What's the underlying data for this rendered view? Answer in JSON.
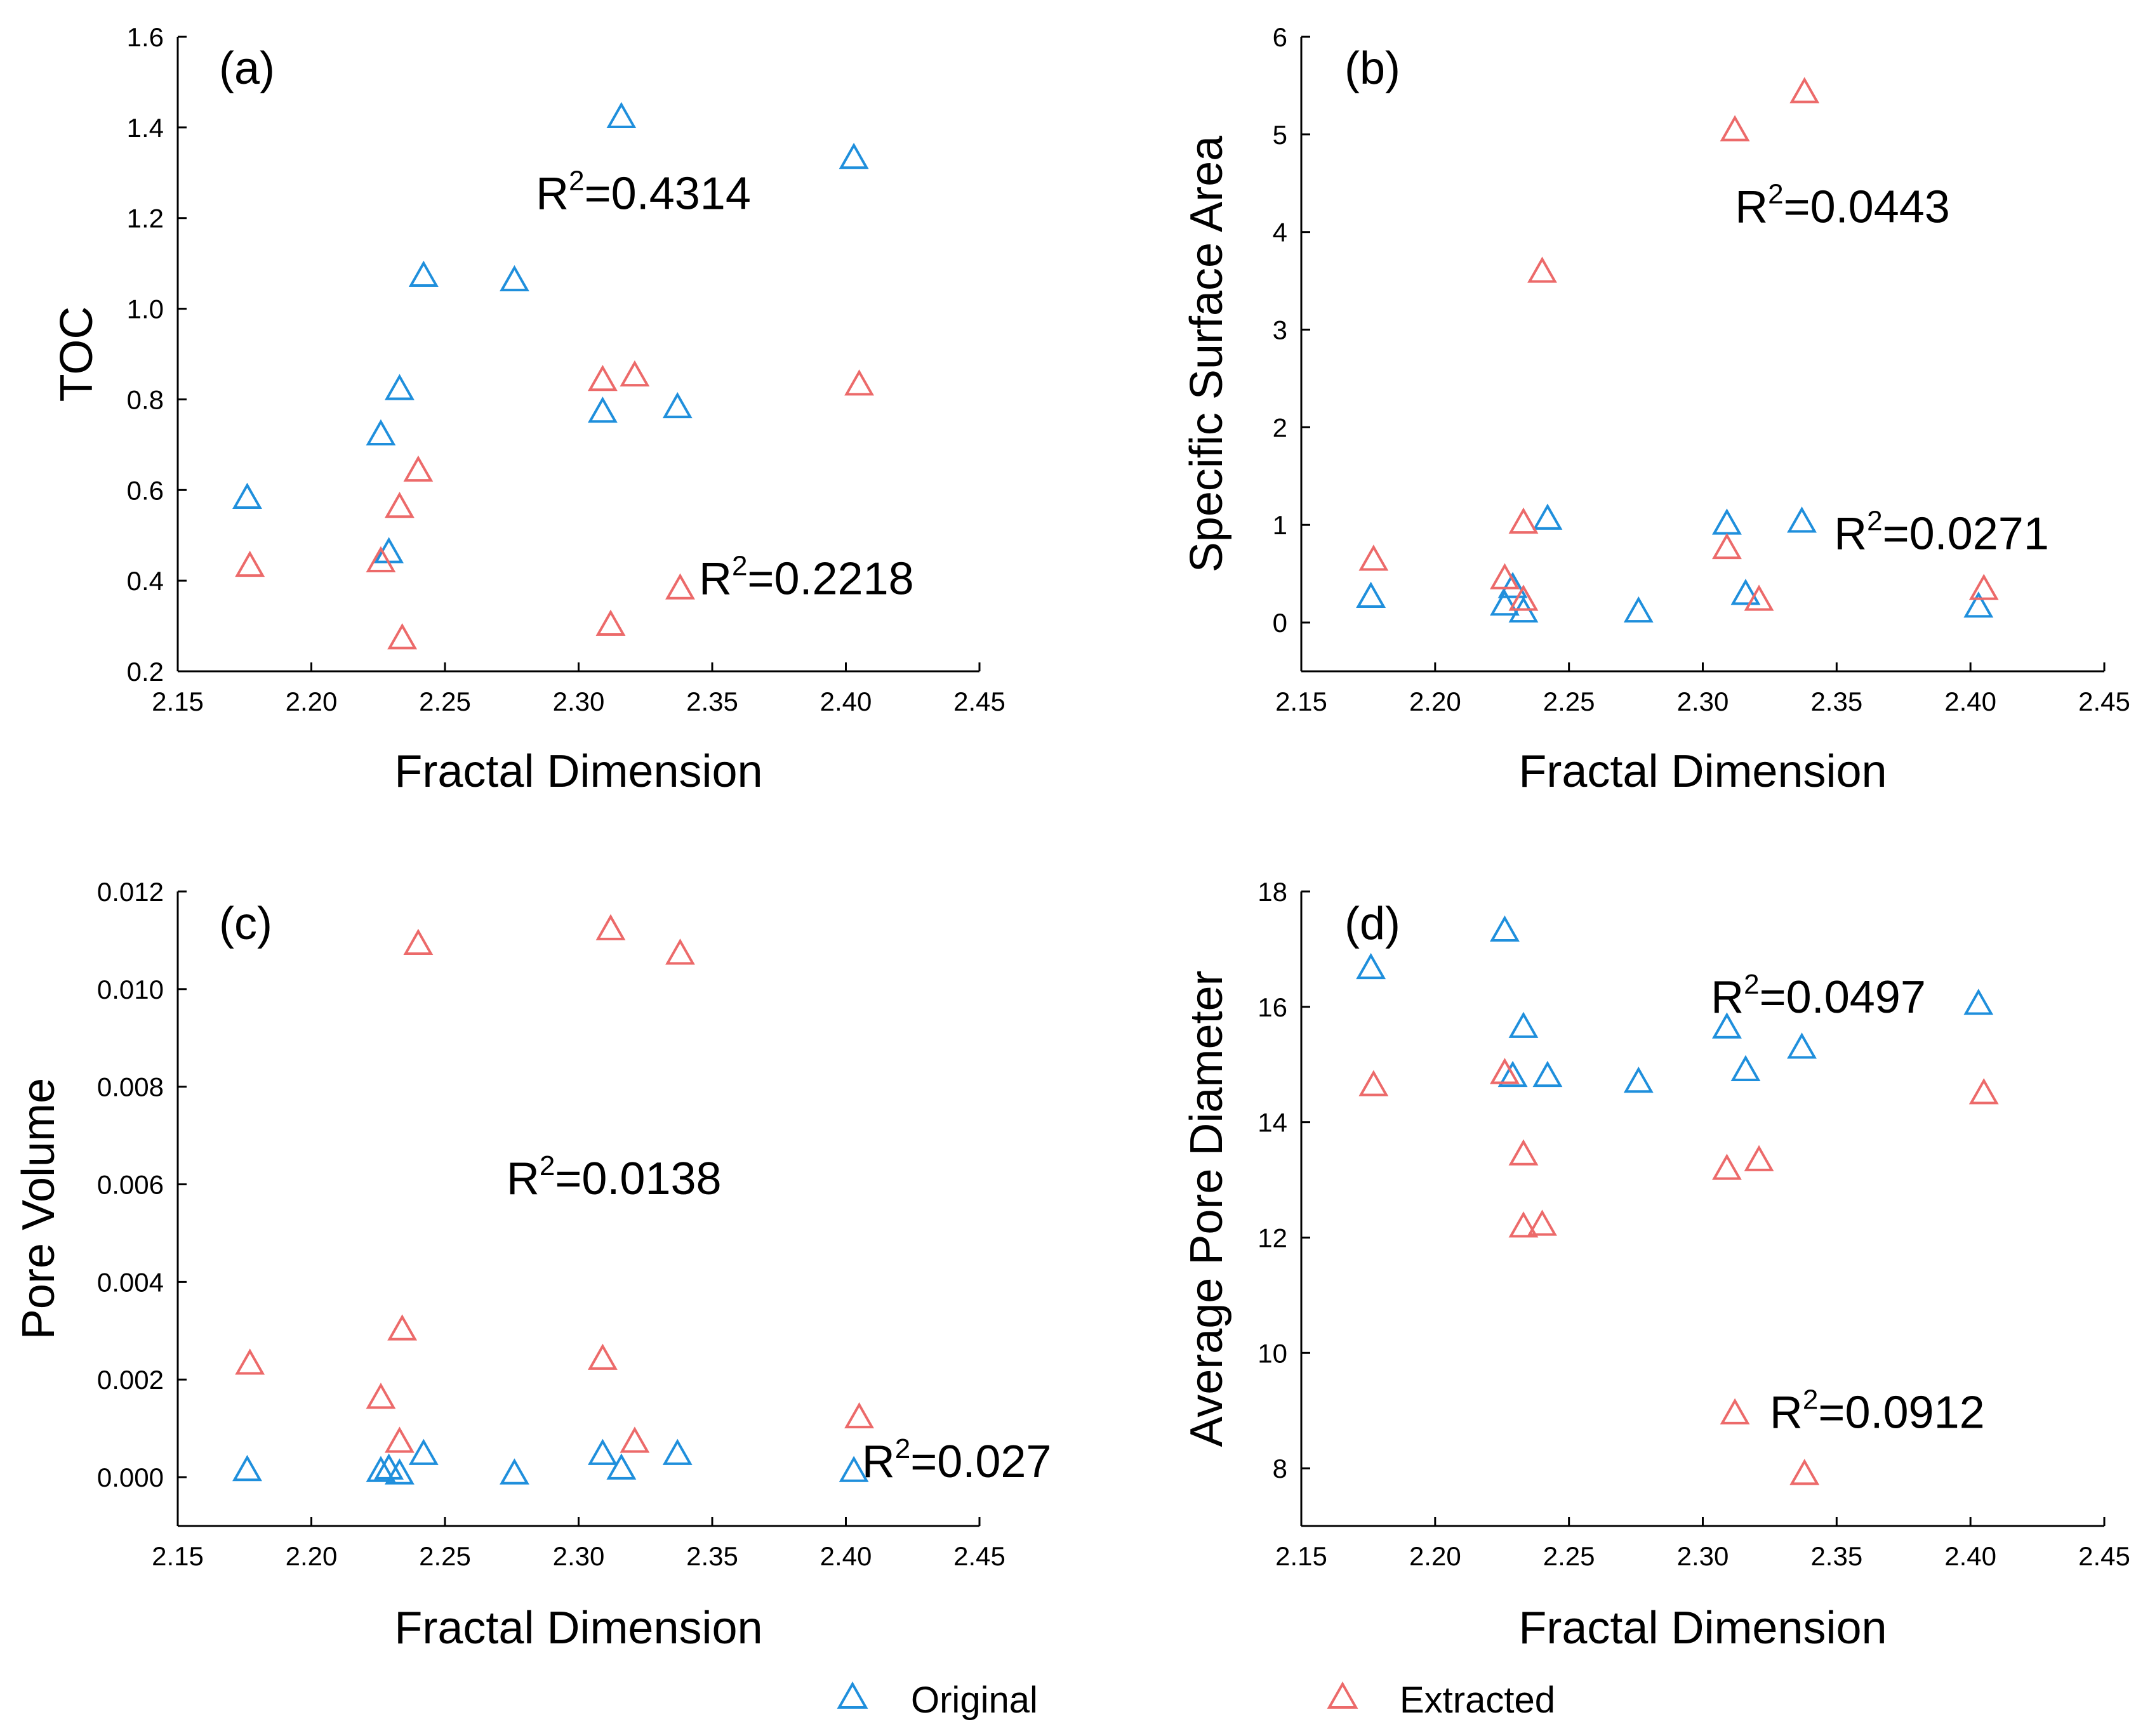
{
  "colors": {
    "original": "#1f8fdc",
    "extracted": "#ec6a6a"
  },
  "legend": {
    "items": [
      {
        "label": "Original",
        "series": "original"
      },
      {
        "label": "Extracted",
        "series": "extracted"
      }
    ]
  },
  "chart_data": [
    {
      "type": "scatter",
      "id": "a",
      "label": "(a)",
      "xlabel": "Fractal Dimension",
      "ylabel": "TOC",
      "xlim": [
        2.15,
        2.45
      ],
      "ylim": [
        0.2,
        1.6
      ],
      "xticks": [
        "2.15",
        "2.20",
        "2.25",
        "2.30",
        "2.35",
        "2.40",
        "2.45"
      ],
      "yticks": [
        "0.2",
        "0.4",
        "0.6",
        "0.8",
        "1.0",
        "1.2",
        "1.4",
        "1.6"
      ],
      "series": [
        {
          "name": "Original",
          "key": "original",
          "points": [
            [
              2.176,
              0.58
            ],
            [
              2.226,
              0.72
            ],
            [
              2.229,
              0.46
            ],
            [
              2.233,
              0.82
            ],
            [
              2.242,
              1.07
            ],
            [
              2.276,
              1.06
            ],
            [
              2.309,
              0.77
            ],
            [
              2.316,
              1.42
            ],
            [
              2.337,
              0.78
            ],
            [
              2.403,
              1.33
            ]
          ]
        },
        {
          "name": "Extracted",
          "key": "extracted",
          "points": [
            [
              2.177,
              0.43
            ],
            [
              2.226,
              0.44
            ],
            [
              2.233,
              0.56
            ],
            [
              2.234,
              0.27
            ],
            [
              2.24,
              0.64
            ],
            [
              2.309,
              0.84
            ],
            [
              2.312,
              0.3
            ],
            [
              2.321,
              0.85
            ],
            [
              2.338,
              0.38
            ],
            [
              2.405,
              0.83
            ]
          ]
        }
      ],
      "annotations": [
        {
          "text": "R",
          "sup": "2",
          "rest": "=0.4314",
          "x": 2.284,
          "y": 1.22
        },
        {
          "text": "R",
          "sup": "2",
          "rest": "=0.2218",
          "x": 2.345,
          "y": 0.37
        }
      ]
    },
    {
      "type": "scatter",
      "id": "b",
      "label": "(b)",
      "xlabel": "Fractal Dimension",
      "ylabel": "Specific Surface Area",
      "xlim": [
        2.15,
        2.45
      ],
      "ylim": [
        -0.5,
        6
      ],
      "xticks": [
        "2.15",
        "2.20",
        "2.25",
        "2.30",
        "2.35",
        "2.40",
        "2.45"
      ],
      "yticks": [
        "0",
        "1",
        "2",
        "3",
        "4",
        "5",
        "6"
      ],
      "series": [
        {
          "name": "Original",
          "key": "original",
          "points": [
            [
              2.176,
              0.25
            ],
            [
              2.226,
              0.17
            ],
            [
              2.229,
              0.35
            ],
            [
              2.233,
              0.1
            ],
            [
              2.242,
              1.05
            ],
            [
              2.276,
              0.1
            ],
            [
              2.309,
              1.0
            ],
            [
              2.316,
              0.28
            ],
            [
              2.337,
              1.02
            ],
            [
              2.403,
              0.15
            ]
          ]
        },
        {
          "name": "Extracted",
          "key": "extracted",
          "points": [
            [
              2.177,
              0.63
            ],
            [
              2.226,
              0.44
            ],
            [
              2.233,
              1.01
            ],
            [
              2.233,
              0.22
            ],
            [
              2.24,
              3.58
            ],
            [
              2.309,
              0.75
            ],
            [
              2.312,
              5.03
            ],
            [
              2.321,
              0.22
            ],
            [
              2.338,
              5.42
            ],
            [
              2.405,
              0.33
            ]
          ]
        }
      ],
      "annotations": [
        {
          "text": "R",
          "sup": "2",
          "rest": "=0.0443",
          "x": 2.312,
          "y": 4.1
        },
        {
          "text": "R",
          "sup": "2",
          "rest": "=0.0271",
          "x": 2.349,
          "y": 0.75
        }
      ]
    },
    {
      "type": "scatter",
      "id": "c",
      "label": "(c)",
      "xlabel": "Fractal Dimension",
      "ylabel": "Pore Volume",
      "xlim": [
        2.15,
        2.45
      ],
      "ylim": [
        -0.001,
        0.012
      ],
      "xticks": [
        "2.15",
        "2.20",
        "2.25",
        "2.30",
        "2.35",
        "2.40",
        "2.45"
      ],
      "yticks": [
        "0.000",
        "0.002",
        "0.004",
        "0.006",
        "0.008",
        "0.010",
        "0.012"
      ],
      "series": [
        {
          "name": "Original",
          "key": "original",
          "points": [
            [
              2.176,
              0.00012
            ],
            [
              2.226,
              0.0001
            ],
            [
              2.229,
              0.00015
            ],
            [
              2.233,
              5e-05
            ],
            [
              2.242,
              0.00045
            ],
            [
              2.276,
              5e-05
            ],
            [
              2.309,
              0.00045
            ],
            [
              2.316,
              0.00015
            ],
            [
              2.337,
              0.00045
            ],
            [
              2.403,
              0.0001
            ]
          ]
        },
        {
          "name": "Extracted",
          "key": "extracted",
          "points": [
            [
              2.177,
              0.0023
            ],
            [
              2.226,
              0.0016
            ],
            [
              2.233,
              0.0007
            ],
            [
              2.234,
              0.003
            ],
            [
              2.24,
              0.0109
            ],
            [
              2.309,
              0.0024
            ],
            [
              2.312,
              0.0112
            ],
            [
              2.321,
              0.0007
            ],
            [
              2.338,
              0.0107
            ],
            [
              2.405,
              0.0012
            ]
          ]
        }
      ],
      "annotations": [
        {
          "text": "R",
          "sup": "2",
          "rest": "=0.0138",
          "x": 2.273,
          "y": 0.0058
        },
        {
          "text": "R",
          "sup": "2",
          "rest": "=0.027",
          "x": 2.406,
          "y": 0.0
        }
      ]
    },
    {
      "type": "scatter",
      "id": "d",
      "label": "(d)",
      "xlabel": "Fractal Dimension",
      "ylabel": "Average Pore Diameter",
      "xlim": [
        2.15,
        2.45
      ],
      "ylim": [
        7,
        18
      ],
      "xticks": [
        "2.15",
        "2.20",
        "2.25",
        "2.30",
        "2.35",
        "2.40",
        "2.45"
      ],
      "yticks": [
        "8",
        "10",
        "12",
        "14",
        "16",
        "18"
      ],
      "series": [
        {
          "name": "Original",
          "key": "original",
          "points": [
            [
              2.176,
              16.65
            ],
            [
              2.226,
              17.3
            ],
            [
              2.229,
              14.78
            ],
            [
              2.233,
              15.63
            ],
            [
              2.242,
              14.78
            ],
            [
              2.276,
              14.68
            ],
            [
              2.309,
              15.62
            ],
            [
              2.316,
              14.88
            ],
            [
              2.337,
              15.27
            ],
            [
              2.403,
              16.03
            ]
          ]
        },
        {
          "name": "Extracted",
          "key": "extracted",
          "points": [
            [
              2.177,
              14.62
            ],
            [
              2.226,
              14.83
            ],
            [
              2.233,
              13.42
            ],
            [
              2.233,
              12.17
            ],
            [
              2.24,
              12.2
            ],
            [
              2.309,
              13.17
            ],
            [
              2.312,
              8.93
            ],
            [
              2.321,
              13.32
            ],
            [
              2.338,
              7.88
            ],
            [
              2.405,
              14.48
            ]
          ]
        }
      ],
      "annotations": [
        {
          "text": "R",
          "sup": "2",
          "rest": "=0.0497",
          "x": 2.303,
          "y": 15.9
        },
        {
          "text": "R",
          "sup": "2",
          "rest": "=0.0912",
          "x": 2.325,
          "y": 8.7
        }
      ]
    }
  ]
}
